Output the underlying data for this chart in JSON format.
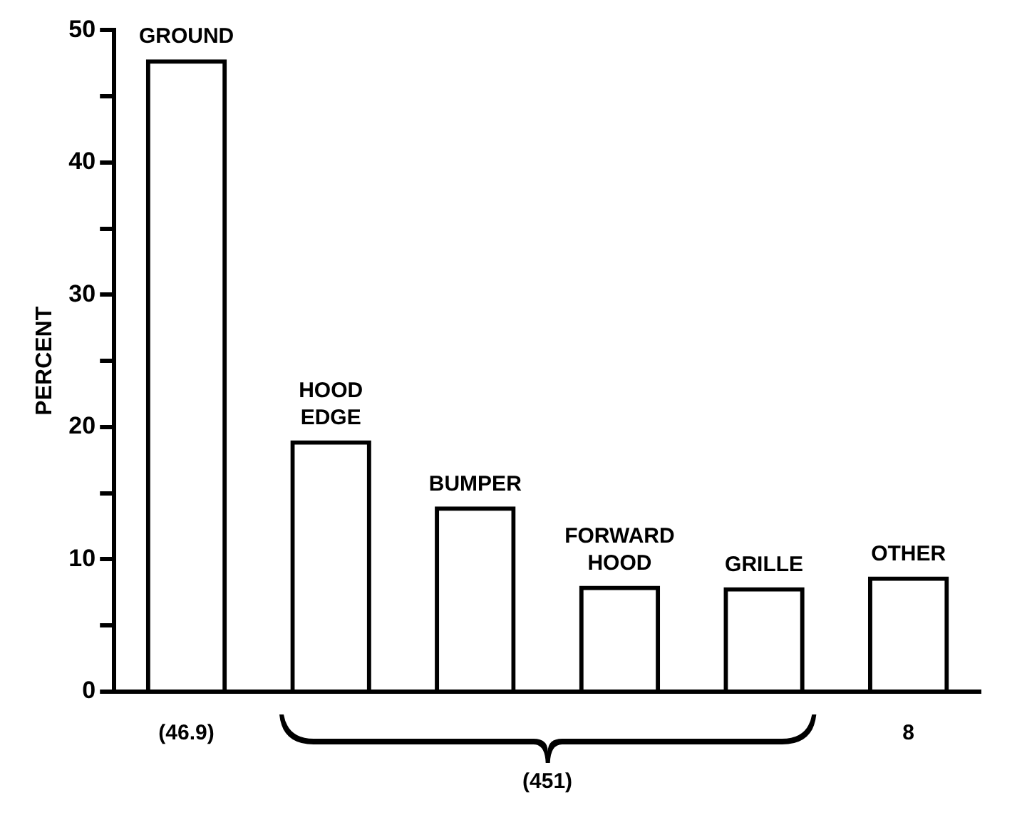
{
  "chart_data": {
    "type": "bar",
    "ylabel": "PERCENT",
    "categories": [
      "GROUND",
      "HOOD EDGE",
      "BUMPER",
      "FORWARD HOOD",
      "GRILLE",
      "OTHER"
    ],
    "values": [
      47.8,
      19.0,
      14.0,
      8.0,
      7.9,
      8.7
    ],
    "color": "#000000",
    "ylim": [
      0,
      50
    ],
    "yticks": [
      0,
      {
        "value": 5,
        "label": null
      },
      10,
      {
        "value": 15,
        "label": null
      },
      20,
      {
        "value": 25,
        "label": null
      },
      30,
      {
        "value": 35,
        "label": null
      },
      40,
      {
        "value": 45,
        "label": null
      },
      50
    ],
    "tick_labels": "y",
    "grid": false,
    "legend": false,
    "annotations": [
      "(46.9)",
      "(451)",
      "8"
    ]
  }
}
